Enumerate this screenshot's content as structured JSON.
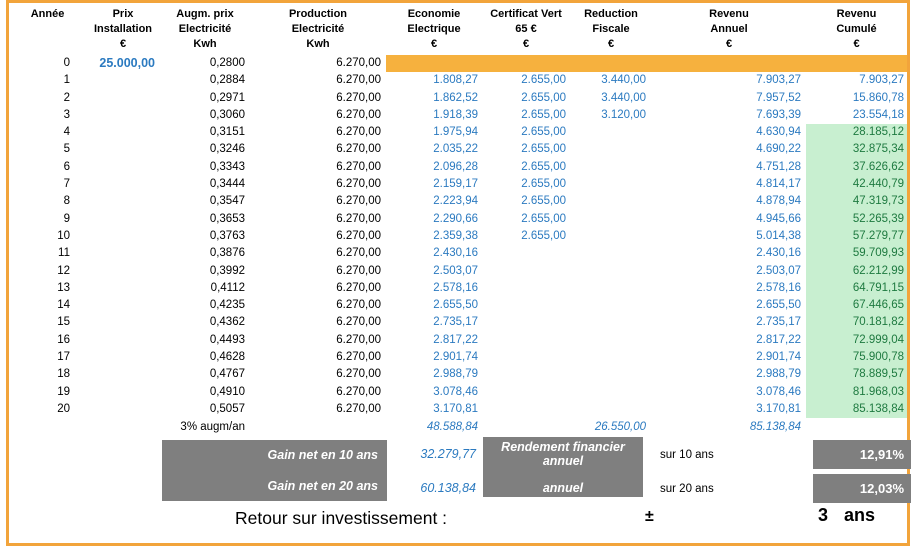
{
  "colors": {
    "accent_orange_border": "#F2A43B",
    "row0_highlight_fill": "#F6B13E",
    "positive_fill_green": "#C8EFD0",
    "positive_text_green": "#1E7A40",
    "value_blue": "#2B7AC0",
    "summary_box_gray": "#7F7F7F"
  },
  "table": {
    "columns": [
      {
        "id": "annee",
        "lines": [
          "Année",
          "",
          ""
        ]
      },
      {
        "id": "prix",
        "lines": [
          "Prix",
          "Installation",
          "€"
        ]
      },
      {
        "id": "augm",
        "lines": [
          "Augm. prix",
          "Electricité",
          "Kwh"
        ]
      },
      {
        "id": "production",
        "lines": [
          "Production",
          "Electricité",
          "Kwh"
        ]
      },
      {
        "id": "economie",
        "lines": [
          "Economie",
          "Electrique",
          "€"
        ]
      },
      {
        "id": "certificat",
        "lines": [
          "Certificat Vert",
          "65 €",
          "€"
        ]
      },
      {
        "id": "reduction",
        "lines": [
          "Reduction",
          "Fiscale",
          "€"
        ]
      },
      {
        "id": "revenu_annuel",
        "lines": [
          "Revenu",
          "Annuel",
          "€"
        ]
      },
      {
        "id": "revenu_cumule",
        "lines": [
          "Revenu",
          "Cumulé",
          "€"
        ]
      }
    ],
    "rows": [
      {
        "annee": "0",
        "prix": "25.000,00",
        "augm": "0,2800",
        "production": "6.270,00",
        "economie": "",
        "certificat": "",
        "reduction": "",
        "revenu_annuel": "",
        "revenu_cumule": "",
        "highlight": "orange"
      },
      {
        "annee": "1",
        "prix": "",
        "augm": "0,2884",
        "production": "6.270,00",
        "economie": "1.808,27",
        "certificat": "2.655,00",
        "reduction": "3.440,00",
        "revenu_annuel": "7.903,27",
        "revenu_cumule": "7.903,27"
      },
      {
        "annee": "2",
        "prix": "",
        "augm": "0,2971",
        "production": "6.270,00",
        "economie": "1.862,52",
        "certificat": "2.655,00",
        "reduction": "3.440,00",
        "revenu_annuel": "7.957,52",
        "revenu_cumule": "15.860,78"
      },
      {
        "annee": "3",
        "prix": "",
        "augm": "0,3060",
        "production": "6.270,00",
        "economie": "1.918,39",
        "certificat": "2.655,00",
        "reduction": "3.120,00",
        "revenu_annuel": "7.693,39",
        "revenu_cumule": "23.554,18"
      },
      {
        "annee": "4",
        "prix": "",
        "augm": "0,3151",
        "production": "6.270,00",
        "economie": "1.975,94",
        "certificat": "2.655,00",
        "reduction": "",
        "revenu_annuel": "4.630,94",
        "revenu_cumule": "28.185,12",
        "cumule_green": true
      },
      {
        "annee": "5",
        "prix": "",
        "augm": "0,3246",
        "production": "6.270,00",
        "economie": "2.035,22",
        "certificat": "2.655,00",
        "reduction": "",
        "revenu_annuel": "4.690,22",
        "revenu_cumule": "32.875,34",
        "cumule_green": true
      },
      {
        "annee": "6",
        "prix": "",
        "augm": "0,3343",
        "production": "6.270,00",
        "economie": "2.096,28",
        "certificat": "2.655,00",
        "reduction": "",
        "revenu_annuel": "4.751,28",
        "revenu_cumule": "37.626,62",
        "cumule_green": true
      },
      {
        "annee": "7",
        "prix": "",
        "augm": "0,3444",
        "production": "6.270,00",
        "economie": "2.159,17",
        "certificat": "2.655,00",
        "reduction": "",
        "revenu_annuel": "4.814,17",
        "revenu_cumule": "42.440,79",
        "cumule_green": true
      },
      {
        "annee": "8",
        "prix": "",
        "augm": "0,3547",
        "production": "6.270,00",
        "economie": "2.223,94",
        "certificat": "2.655,00",
        "reduction": "",
        "revenu_annuel": "4.878,94",
        "revenu_cumule": "47.319,73",
        "cumule_green": true
      },
      {
        "annee": "9",
        "prix": "",
        "augm": "0,3653",
        "production": "6.270,00",
        "economie": "2.290,66",
        "certificat": "2.655,00",
        "reduction": "",
        "revenu_annuel": "4.945,66",
        "revenu_cumule": "52.265,39",
        "cumule_green": true
      },
      {
        "annee": "10",
        "prix": "",
        "augm": "0,3763",
        "production": "6.270,00",
        "economie": "2.359,38",
        "certificat": "2.655,00",
        "reduction": "",
        "revenu_annuel": "5.014,38",
        "revenu_cumule": "57.279,77",
        "cumule_green": true
      },
      {
        "annee": "11",
        "prix": "",
        "augm": "0,3876",
        "production": "6.270,00",
        "economie": "2.430,16",
        "certificat": "",
        "reduction": "",
        "revenu_annuel": "2.430,16",
        "revenu_cumule": "59.709,93",
        "cumule_green": true
      },
      {
        "annee": "12",
        "prix": "",
        "augm": "0,3992",
        "production": "6.270,00",
        "economie": "2.503,07",
        "certificat": "",
        "reduction": "",
        "revenu_annuel": "2.503,07",
        "revenu_cumule": "62.212,99",
        "cumule_green": true
      },
      {
        "annee": "13",
        "prix": "",
        "augm": "0,4112",
        "production": "6.270,00",
        "economie": "2.578,16",
        "certificat": "",
        "reduction": "",
        "revenu_annuel": "2.578,16",
        "revenu_cumule": "64.791,15",
        "cumule_green": true
      },
      {
        "annee": "14",
        "prix": "",
        "augm": "0,4235",
        "production": "6.270,00",
        "economie": "2.655,50",
        "certificat": "",
        "reduction": "",
        "revenu_annuel": "2.655,50",
        "revenu_cumule": "67.446,65",
        "cumule_green": true
      },
      {
        "annee": "15",
        "prix": "",
        "augm": "0,4362",
        "production": "6.270,00",
        "economie": "2.735,17",
        "certificat": "",
        "reduction": "",
        "revenu_annuel": "2.735,17",
        "revenu_cumule": "70.181,82",
        "cumule_green": true
      },
      {
        "annee": "16",
        "prix": "",
        "augm": "0,4493",
        "production": "6.270,00",
        "economie": "2.817,22",
        "certificat": "",
        "reduction": "",
        "revenu_annuel": "2.817,22",
        "revenu_cumule": "72.999,04",
        "cumule_green": true
      },
      {
        "annee": "17",
        "prix": "",
        "augm": "0,4628",
        "production": "6.270,00",
        "economie": "2.901,74",
        "certificat": "",
        "reduction": "",
        "revenu_annuel": "2.901,74",
        "revenu_cumule": "75.900,78",
        "cumule_green": true
      },
      {
        "annee": "18",
        "prix": "",
        "augm": "0,4767",
        "production": "6.270,00",
        "economie": "2.988,79",
        "certificat": "",
        "reduction": "",
        "revenu_annuel": "2.988,79",
        "revenu_cumule": "78.889,57",
        "cumule_green": true
      },
      {
        "annee": "19",
        "prix": "",
        "augm": "0,4910",
        "production": "6.270,00",
        "economie": "3.078,46",
        "certificat": "",
        "reduction": "",
        "revenu_annuel": "3.078,46",
        "revenu_cumule": "81.968,03",
        "cumule_green": true
      },
      {
        "annee": "20",
        "prix": "",
        "augm": "0,5057",
        "production": "6.270,00",
        "economie": "3.170,81",
        "certificat": "",
        "reduction": "",
        "revenu_annuel": "3.170,81",
        "revenu_cumule": "85.138,84",
        "cumule_green": true
      }
    ],
    "footer": {
      "augm_note": "3% augm/an",
      "economie_total": "48.588,84",
      "certificats_total": "26.550,00",
      "revenu_total": "85.138,84"
    }
  },
  "summary": {
    "gain_10_label": "Gain net en 10 ans",
    "gain_10_value": "32.279,77",
    "gain_20_label": "Gain net en 20 ans",
    "gain_20_value": "60.138,84",
    "rendement_lines": [
      "Rendement financier",
      "annuel",
      "annuel"
    ],
    "sur_10_label": "sur 10 ans",
    "sur_10_value": "12,91%",
    "sur_20_label": "sur 20 ans",
    "sur_20_value": "12,03%"
  },
  "payback": {
    "label": "Retour sur investissement :",
    "sign": "±",
    "value": "3",
    "unit": "ans"
  }
}
